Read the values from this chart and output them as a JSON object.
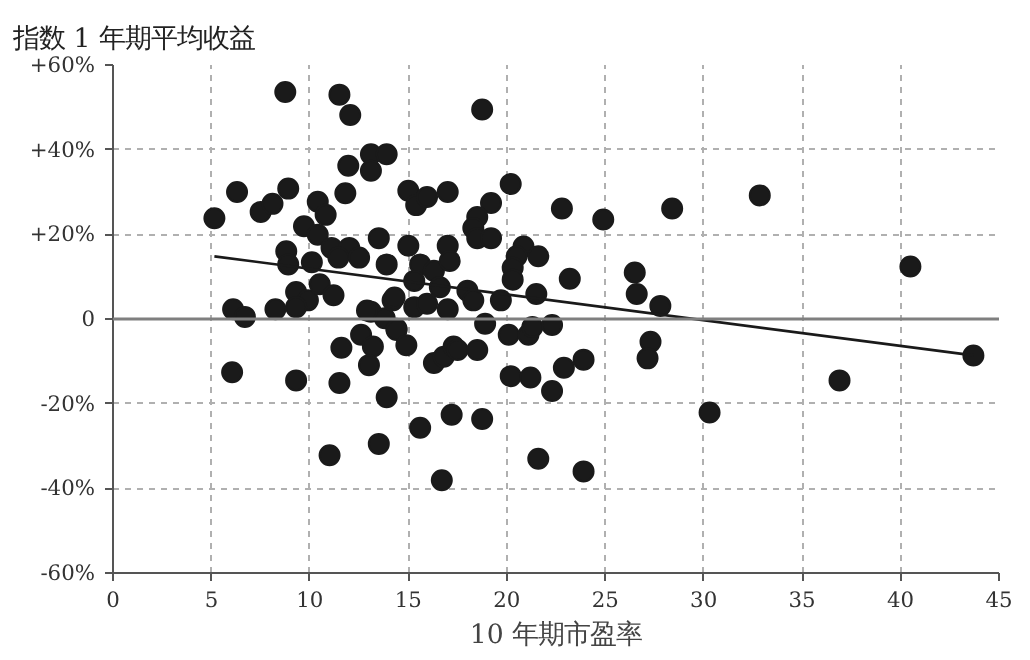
{
  "chart_data": {
    "type": "scatter",
    "ylabel": "指数 1 年期平均收益",
    "xlabel": "10 年期市盈率",
    "xlim": [
      0,
      45
    ],
    "ylim": [
      -60,
      60
    ],
    "xticks": [
      0,
      5,
      10,
      15,
      20,
      25,
      30,
      35,
      40,
      45
    ],
    "yticks": [
      {
        "value": -60,
        "label": "-60%"
      },
      {
        "value": -40,
        "label": "-40%"
      },
      {
        "value": -20,
        "label": "-20%"
      },
      0,
      {
        "value": 20,
        "label": "+20%"
      },
      {
        "value": 40,
        "label": "+40%"
      },
      {
        "value": 60,
        "label": "+60%"
      }
    ],
    "grid": true,
    "ref_lines": [
      {
        "axis": "y",
        "value": 0,
        "color": "#7f7f7f"
      }
    ],
    "series": [
      {
        "color": "#1a1a1a",
        "marker": "circle",
        "x": [
          8.75,
          11.5,
          12.05,
          13.1,
          13.9,
          11.95,
          13.1,
          11.8,
          6.3,
          8.9,
          5.15,
          7.5,
          8.1,
          10.4,
          10.8,
          9.7,
          10.4,
          13.5,
          8.8,
          8.9,
          10.1,
          11.1,
          12.0,
          11.45,
          12.5,
          13.9,
          9.3,
          9.9,
          9.3,
          10.5,
          11.2,
          6.1,
          6.7,
          8.25,
          13.1,
          13.8,
          14.4,
          12.6,
          11.6,
          13.2,
          13.0,
          6.05,
          9.3,
          11.5,
          13.9,
          13.5,
          11.0,
          14.2,
          18.75,
          15.0,
          15.4,
          15.95,
          17.0,
          20.2,
          19.2,
          18.5,
          18.3,
          18.5,
          19.2,
          22.8,
          15.0,
          17.0,
          20.85,
          20.5,
          20.3,
          20.3,
          21.6,
          23.2,
          15.6,
          16.3,
          17.1,
          15.3,
          16.6,
          14.3,
          15.3,
          15.95,
          17.0,
          18.0,
          18.3,
          19.7,
          21.5,
          12.9,
          14.4,
          18.9,
          20.1,
          21.1,
          21.3,
          22.3,
          14.9,
          16.3,
          16.8,
          17.3,
          17.5,
          18.5,
          20.2,
          21.2,
          22.9,
          22.3,
          23.9,
          15.6,
          17.2,
          18.75,
          16.7,
          21.6,
          23.9,
          24.9,
          28.4,
          32.85,
          26.5,
          26.6,
          27.8,
          27.3,
          27.15,
          30.3,
          40.5,
          36.9,
          43.7
        ],
        "values": [
          53.6,
          53,
          48.2,
          38.9,
          38.9,
          36.2,
          35,
          29.7,
          30,
          30.8,
          23.8,
          25.3,
          27.2,
          27.7,
          24.6,
          21.9,
          19.9,
          19.1,
          16,
          12.9,
          13.4,
          16.8,
          16.8,
          14.5,
          14.5,
          12.9,
          6.4,
          4.4,
          2.8,
          8.2,
          5.6,
          2.3,
          0.5,
          2.3,
          1.7,
          0.2,
          -2.3,
          -3.7,
          -6.8,
          -6.5,
          -10.9,
          -12.6,
          -14.5,
          -15.1,
          -18.5,
          -29.5,
          -32.2,
          4.4,
          49.5,
          30.3,
          26.9,
          28.8,
          30,
          31.9,
          27.4,
          24.1,
          21.5,
          19.1,
          19.1,
          26.1,
          17.3,
          17.3,
          17.1,
          14.8,
          12.1,
          9.3,
          14.8,
          9.5,
          12.9,
          11.4,
          13.7,
          9.0,
          7.5,
          5.1,
          2.8,
          3.6,
          2.3,
          6.7,
          4.4,
          4.4,
          5.9,
          2.0,
          -2.6,
          -1.1,
          -3.7,
          -3.7,
          -1.9,
          -1.4,
          -6.2,
          -10.4,
          -8.9,
          -6.5,
          -7.3,
          -7.3,
          -13.5,
          -13.8,
          -11.5,
          -17,
          -9.6,
          -25.7,
          -22.6,
          -23.6,
          -38.1,
          -33,
          -36,
          23.5,
          26.1,
          29.2,
          11.0,
          5.9,
          3.1,
          -5.4,
          -9.3,
          -22.1,
          12.4,
          -14.5,
          -8.6
        ]
      },
      {
        "type": "line",
        "color": "#1a1a1a",
        "x": [
          5.15,
          43.7
        ],
        "values": [
          14.8,
          -8.6
        ]
      }
    ]
  }
}
